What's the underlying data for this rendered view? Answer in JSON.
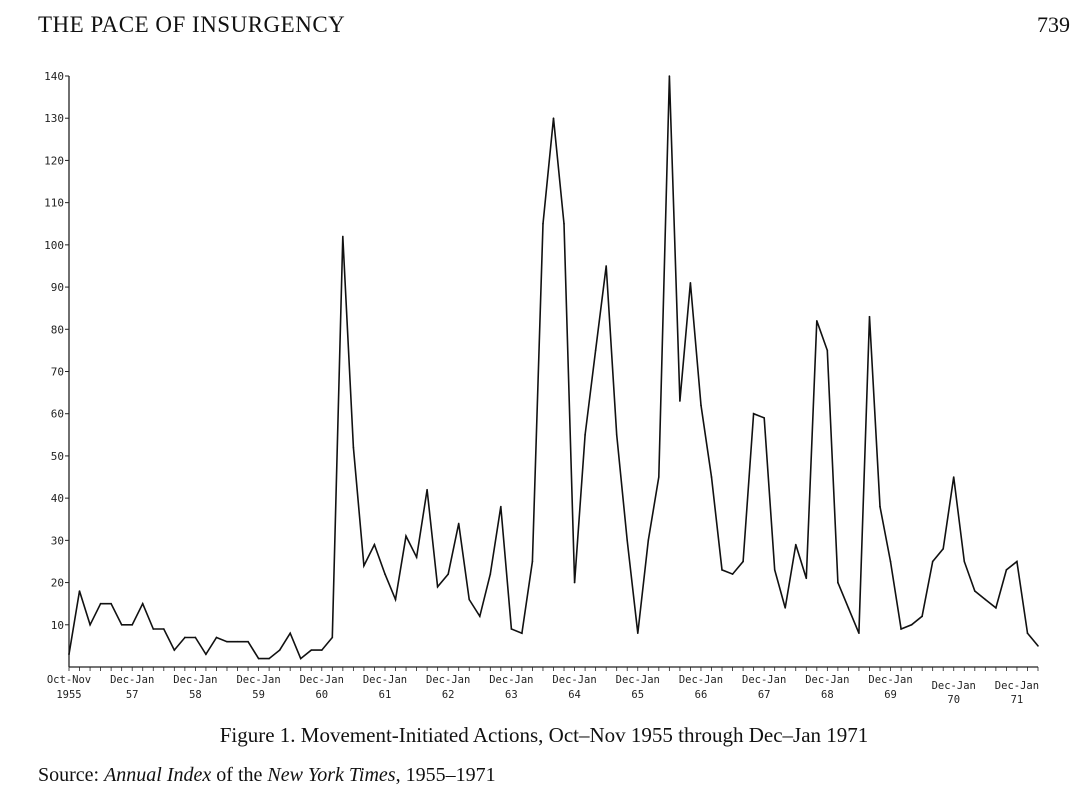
{
  "page": {
    "header": "THE PACE OF INSURGENCY",
    "number": "739"
  },
  "caption": "Figure 1. Movement-Initiated Actions, Oct–Nov 1955 through Dec–Jan 1971",
  "source": {
    "prefix": "Source: ",
    "italic1": "Annual Index",
    "middle": " of the ",
    "italic2": "New York Times",
    "suffix": ", 1955–1971"
  },
  "chart_data": {
    "type": "line",
    "title": "",
    "xlabel": "",
    "ylabel": "",
    "ylim": [
      0,
      140
    ],
    "yticks": [
      10,
      20,
      30,
      40,
      50,
      60,
      70,
      80,
      90,
      100,
      110,
      120,
      130,
      140
    ],
    "xtick_labels": [
      {
        "i": 0,
        "top": "Oct-Nov",
        "bottom": "1955"
      },
      {
        "i": 6,
        "top": "Dec-Jan",
        "bottom": "57"
      },
      {
        "i": 12,
        "top": "Dec-Jan",
        "bottom": "58"
      },
      {
        "i": 18,
        "top": "Dec-Jan",
        "bottom": "59"
      },
      {
        "i": 24,
        "top": "Dec-Jan",
        "bottom": "60"
      },
      {
        "i": 30,
        "top": "Dec-Jan",
        "bottom": "61"
      },
      {
        "i": 36,
        "top": "Dec-Jan",
        "bottom": "62"
      },
      {
        "i": 42,
        "top": "Dec-Jan",
        "bottom": "63"
      },
      {
        "i": 48,
        "top": "Dec-Jan",
        "bottom": "64"
      },
      {
        "i": 54,
        "top": "Dec-Jan",
        "bottom": "65"
      },
      {
        "i": 60,
        "top": "Dec-Jan",
        "bottom": "66"
      },
      {
        "i": 66,
        "top": "Dec-Jan",
        "bottom": "67"
      },
      {
        "i": 72,
        "top": "Dec-Jan",
        "bottom": "68"
      },
      {
        "i": 78,
        "top": "Dec-Jan",
        "bottom": "69"
      },
      {
        "i": 84,
        "top": "Dec-Jan",
        "bottom": "70"
      },
      {
        "i": 90,
        "top": "Dec-Jan",
        "bottom": "71"
      }
    ],
    "series": [
      {
        "values": [
          3,
          18,
          10,
          15,
          15,
          10,
          10,
          15,
          9,
          9,
          4,
          7,
          7,
          3,
          7,
          6,
          6,
          6,
          2,
          2,
          4,
          8,
          2,
          4,
          4,
          7,
          102,
          52,
          24,
          29,
          22,
          16,
          31,
          26,
          42,
          19,
          22,
          34,
          16,
          12,
          22,
          38,
          9,
          8,
          25,
          105,
          130,
          105,
          20,
          55,
          75,
          95,
          55,
          30,
          8,
          30,
          45,
          140,
          63,
          91,
          62,
          45,
          23,
          22,
          25,
          60,
          59,
          23,
          14,
          29,
          21,
          82,
          75,
          20,
          14,
          8,
          83,
          38,
          25,
          9,
          10,
          12,
          25,
          28,
          45,
          25,
          18,
          16,
          14,
          23,
          25,
          8,
          5
        ]
      }
    ]
  }
}
